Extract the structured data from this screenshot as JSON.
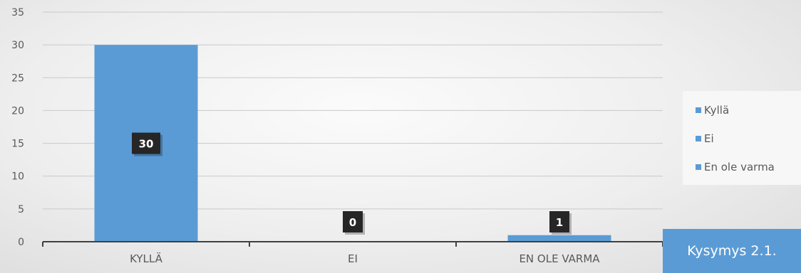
{
  "chart_data": {
    "type": "bar",
    "categories": [
      "KYLLÄ",
      "EI",
      "EN OLE VARMA"
    ],
    "values": [
      30,
      0,
      1
    ],
    "data_labels": [
      "30",
      "0",
      "1"
    ],
    "ylim": [
      0,
      35
    ],
    "yticks": [
      "0",
      "5",
      "10",
      "15",
      "20",
      "25",
      "30",
      "35"
    ],
    "grid": true,
    "legend_position": "right",
    "legend": [
      "Kyllä",
      "Ei",
      "En ole varma"
    ],
    "bar_color": "#5b9bd5",
    "label_box_color": "#262626"
  },
  "caption": "Kysymys 2.1."
}
